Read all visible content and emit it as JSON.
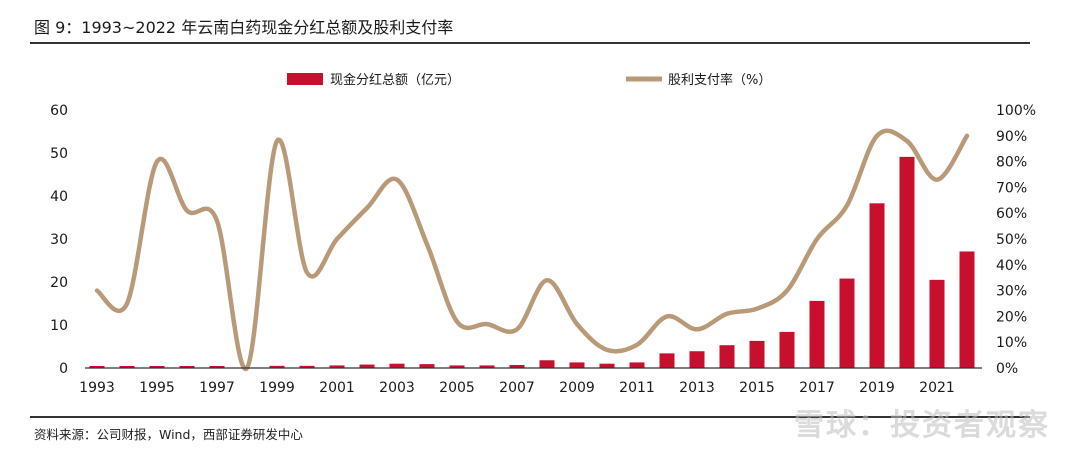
{
  "figure": {
    "title": "图 9：1993~2022 年云南白药现金分红总额及股利支付率",
    "source": "资料来源：公司财报，Wind，西部证券研发中心",
    "watermark": "雪球：投资者观察"
  },
  "colors": {
    "bar": "#c8102e",
    "line": "#b89a78",
    "axis": "#333333"
  },
  "chart_data": {
    "type": "bar",
    "combo": "bar+line (dual axis)",
    "x": [
      1993,
      1994,
      1995,
      1996,
      1997,
      1998,
      1999,
      2000,
      2001,
      2002,
      2003,
      2004,
      2005,
      2006,
      2007,
      2008,
      2009,
      2010,
      2011,
      2012,
      2013,
      2014,
      2015,
      2016,
      2017,
      2018,
      2019,
      2020,
      2021,
      2022
    ],
    "x_tick_labels": [
      "1993",
      "1995",
      "1997",
      "1999",
      "2001",
      "2003",
      "2005",
      "2007",
      "2009",
      "2011",
      "2013",
      "2015",
      "2017",
      "2019",
      "2021"
    ],
    "series": [
      {
        "name": "现金分红总额（亿元）",
        "type": "bar",
        "axis": "left",
        "values": [
          0.3,
          0.3,
          0.4,
          0.4,
          0.4,
          0.0,
          0.5,
          0.5,
          0.6,
          0.8,
          1.0,
          0.9,
          0.6,
          0.6,
          0.7,
          1.8,
          1.3,
          1.0,
          1.3,
          3.4,
          3.9,
          5.3,
          6.3,
          8.4,
          15.6,
          20.8,
          38.3,
          49.1,
          20.5,
          27.1
        ]
      },
      {
        "name": "股利支付率（%）",
        "type": "line",
        "axis": "right",
        "values": [
          30,
          25,
          80,
          61,
          57,
          0,
          88,
          37,
          50,
          62,
          73,
          48,
          18,
          17,
          15,
          34,
          17,
          7,
          9,
          20,
          15,
          21,
          23,
          30,
          50,
          63,
          90,
          88,
          73,
          90
        ]
      }
    ],
    "y_left": {
      "min": 0,
      "max": 60,
      "ticks": [
        "0",
        "10",
        "20",
        "30",
        "40",
        "50",
        "60"
      ]
    },
    "y_right": {
      "min": 0,
      "max": 100,
      "ticks": [
        "0%",
        "10%",
        "20%",
        "30%",
        "40%",
        "50%",
        "60%",
        "70%",
        "80%",
        "90%",
        "100%"
      ]
    },
    "legend_position": "top-center",
    "grid": false
  }
}
